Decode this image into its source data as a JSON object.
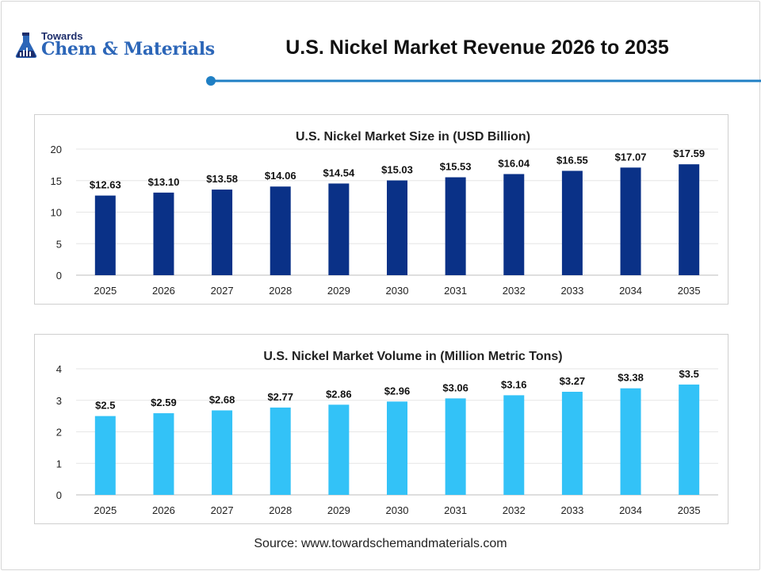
{
  "brand": {
    "top": "Towards",
    "main": "Chem & Materials"
  },
  "page_title": "U.S. Nickel Market Revenue 2026 to 2035",
  "source": "Source: www.towardschemandmaterials.com",
  "colors": {
    "title_rule": "#1f7fc4",
    "revenue_bar": "#0a3187",
    "volume_bar": "#33c2f7",
    "grid": "#e6e6e6"
  },
  "chart_data": [
    {
      "type": "bar",
      "title": "U.S. Nickel Market Size in (USD Billion)",
      "categories": [
        "2025",
        "2026",
        "2027",
        "2028",
        "2029",
        "2030",
        "2031",
        "2032",
        "2033",
        "2034",
        "2035"
      ],
      "values": [
        12.63,
        13.1,
        13.58,
        14.06,
        14.54,
        15.03,
        15.53,
        16.04,
        16.55,
        17.07,
        17.59
      ],
      "data_labels": [
        "$12.63",
        "$13.10",
        "$13.58",
        "$14.06",
        "$14.54",
        "$15.03",
        "$15.53",
        "$16.04",
        "$16.55",
        "$17.07",
        "$17.59"
      ],
      "ylim": [
        0,
        20
      ],
      "yticks": [
        "0",
        "5",
        "10",
        "15",
        "20"
      ],
      "ytick_values": [
        0,
        5,
        10,
        15,
        20
      ],
      "grid": true,
      "legend": "none",
      "color": "#0a3187"
    },
    {
      "type": "bar",
      "title": "U.S. Nickel Market Volume in (Million Metric Tons)",
      "categories": [
        "2025",
        "2026",
        "2027",
        "2028",
        "2029",
        "2030",
        "2031",
        "2032",
        "2033",
        "2034",
        "2035"
      ],
      "values": [
        2.5,
        2.59,
        2.68,
        2.77,
        2.86,
        2.96,
        3.06,
        3.16,
        3.27,
        3.38,
        3.5
      ],
      "data_labels": [
        "$2.5",
        "$2.59",
        "$2.68",
        "$2.77",
        "$2.86",
        "$2.96",
        "$3.06",
        "$3.16",
        "$3.27",
        "$3.38",
        "$3.5"
      ],
      "ylim": [
        0,
        4
      ],
      "yticks": [
        "0",
        "1",
        "2",
        "3",
        "4"
      ],
      "ytick_values": [
        0,
        1,
        2,
        3,
        4
      ],
      "grid": true,
      "legend": "none",
      "color": "#33c2f7"
    }
  ]
}
